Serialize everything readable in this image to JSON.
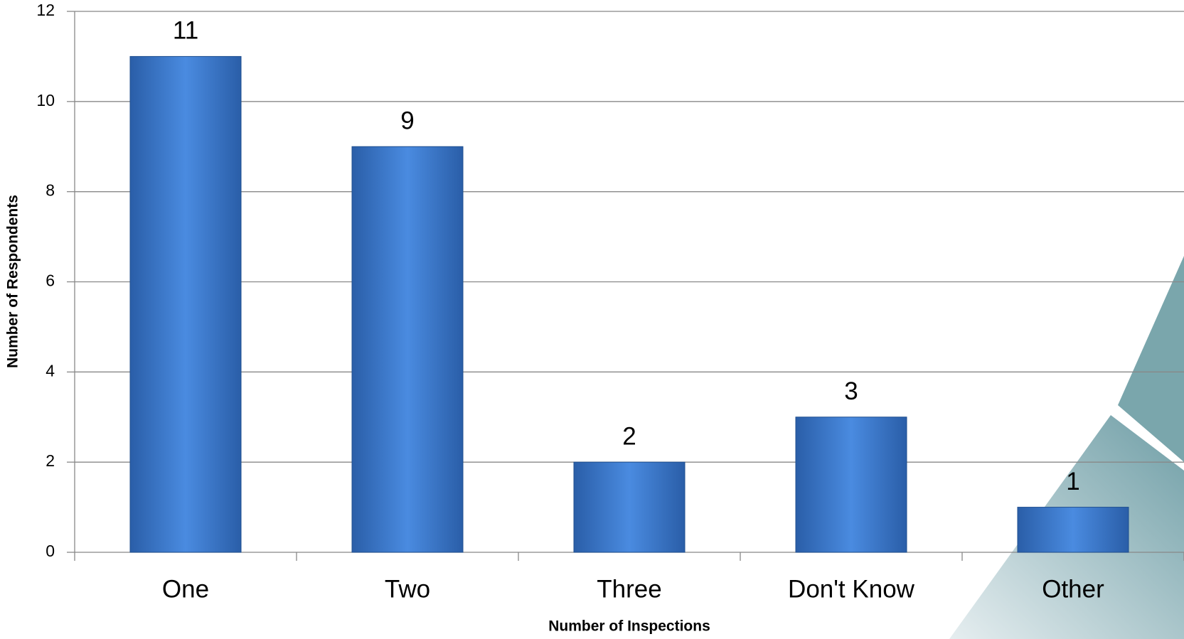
{
  "chart_data": {
    "type": "bar",
    "categories": [
      "One",
      "Two",
      "Three",
      "Don't Know",
      "Other"
    ],
    "values": [
      11,
      9,
      2,
      3,
      1
    ],
    "color": "#3c7dcc",
    "x_label": "Number of Inspections",
    "y_label": "Number of Respondents",
    "ylim": [
      0,
      12
    ],
    "yticks": [
      0,
      2,
      4,
      6,
      8,
      10,
      12
    ],
    "grid": true
  }
}
